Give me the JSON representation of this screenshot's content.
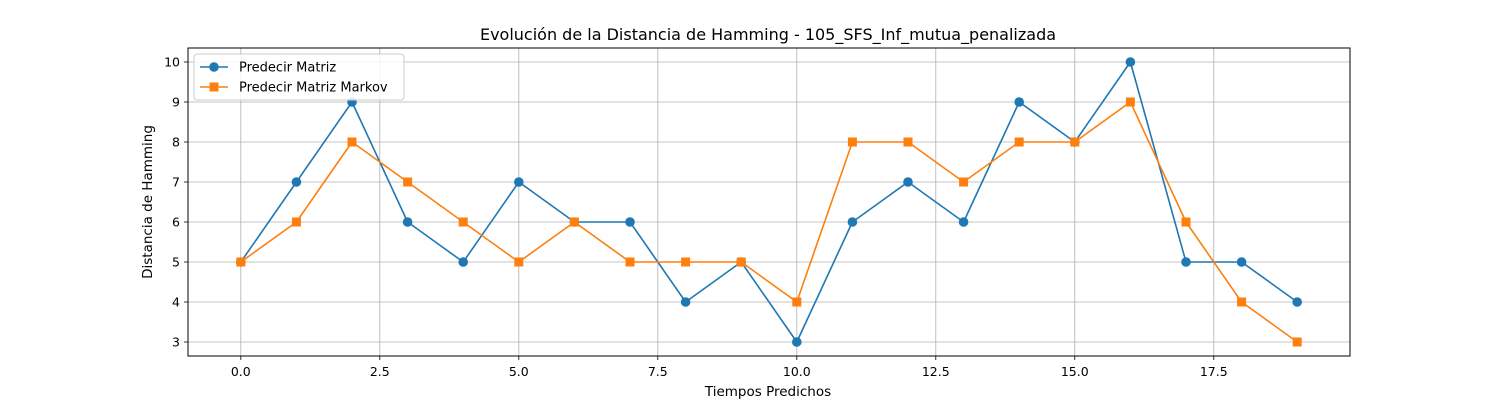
{
  "chart_data": {
    "type": "line",
    "title": "Evolución de la Distancia de Hamming - 105_SFS_Inf_mutua_penalizada",
    "xlabel": "Tiempos Predichos",
    "ylabel": "Distancia de Hamming",
    "x": [
      0,
      1,
      2,
      3,
      4,
      5,
      6,
      7,
      8,
      9,
      10,
      11,
      12,
      13,
      14,
      15,
      16,
      17,
      18,
      19
    ],
    "xlim": [
      -0.95,
      19.95
    ],
    "ylim": [
      2.65,
      10.35
    ],
    "xticks": [
      0.0,
      2.5,
      5.0,
      7.5,
      10.0,
      12.5,
      15.0,
      17.5
    ],
    "xtick_labels": [
      "0.0",
      "2.5",
      "5.0",
      "7.5",
      "10.0",
      "12.5",
      "15.0",
      "17.5"
    ],
    "yticks": [
      3,
      4,
      5,
      6,
      7,
      8,
      9,
      10
    ],
    "ytick_labels": [
      "3",
      "4",
      "5",
      "6",
      "7",
      "8",
      "9",
      "10"
    ],
    "grid": true,
    "legend_position": "top-left",
    "series": [
      {
        "name": "Predecir Matriz",
        "color": "#1f77b4",
        "marker": "circle",
        "values": [
          5,
          7,
          9,
          6,
          5,
          7,
          6,
          6,
          4,
          5,
          3,
          6,
          7,
          6,
          9,
          8,
          10,
          5,
          5,
          4
        ]
      },
      {
        "name": "Predecir Matriz Markov",
        "color": "#ff7f0e",
        "marker": "square",
        "values": [
          5,
          6,
          8,
          7,
          6,
          5,
          6,
          5,
          5,
          5,
          4,
          8,
          8,
          7,
          8,
          8,
          9,
          6,
          4,
          3
        ]
      }
    ]
  }
}
